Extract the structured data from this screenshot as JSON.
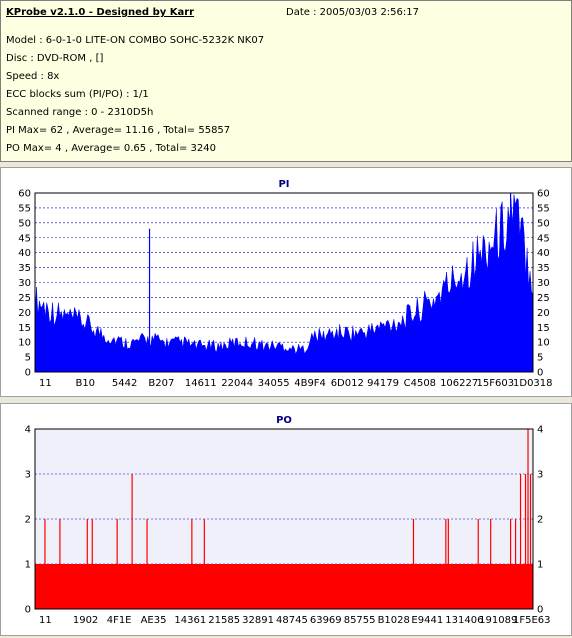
{
  "header": {
    "title": "KProbe v2.1.0 - Designed by Karr",
    "date": "Date : 2005/03/03 2:56:17",
    "lines": [
      "Model : 6-0-1-0 LITE-ON COMBO SOHC-5232K NK07",
      "Disc : DVD-ROM ,  []",
      "Speed : 8x",
      "ECC blocks sum (PI/PO) : 1/1",
      "Scanned range : 0 - 2310D5h",
      "PI Max= 62 , Average= 11.16 , Total= 55857",
      "PO Max= 4 , Average= 0.65 , Total= 3240"
    ]
  },
  "chart_data": [
    {
      "type": "area",
      "title": "PI",
      "color": "#0000ff",
      "ylim": [
        0,
        60
      ],
      "yticks": [
        0,
        5,
        10,
        15,
        20,
        25,
        30,
        35,
        40,
        45,
        50,
        55,
        60
      ],
      "xtick_labels": [
        "11",
        "B10",
        "5442",
        "B207",
        "14611",
        "22044",
        "34055",
        "4B9F4",
        "6D012",
        "94179",
        "C4508",
        "106227",
        "15F603",
        "1D0318"
      ],
      "grid": true,
      "series_description_points": {
        "x": [
          0,
          0.02,
          0.04,
          0.06,
          0.08,
          0.1,
          0.12,
          0.14,
          0.16,
          0.18,
          0.2,
          0.22,
          0.24,
          0.26,
          0.28,
          0.3,
          0.32,
          0.34,
          0.36,
          0.38,
          0.4,
          0.42,
          0.44,
          0.46,
          0.48,
          0.5,
          0.52,
          0.54,
          0.56,
          0.58,
          0.6,
          0.62,
          0.64,
          0.66,
          0.68,
          0.7,
          0.72,
          0.74,
          0.76,
          0.78,
          0.8,
          0.82,
          0.84,
          0.86,
          0.88,
          0.9,
          0.92,
          0.94,
          0.96,
          0.98,
          1.0
        ],
        "y": [
          22,
          20,
          18,
          17,
          16,
          15,
          13,
          11,
          10,
          9,
          9,
          10,
          10,
          9,
          9,
          9,
          8,
          8,
          8,
          8,
          9,
          9,
          9,
          8,
          8,
          8,
          7,
          7,
          11,
          11,
          12,
          12,
          12,
          12,
          13,
          14,
          15,
          16,
          18,
          20,
          22,
          25,
          28,
          31,
          34,
          37,
          40,
          44,
          50,
          40,
          28
        ]
      },
      "spikes": [
        {
          "x": 0.23,
          "y": 48
        },
        {
          "x": 0.955,
          "y": 62
        }
      ]
    },
    {
      "type": "bar",
      "title": "PO",
      "color": "#ff0000",
      "ylim": [
        0,
        4
      ],
      "yticks": [
        0,
        1,
        2,
        3,
        4
      ],
      "xtick_labels": [
        "11",
        "1902",
        "4F1E",
        "AE35",
        "14361",
        "21585",
        "32891",
        "48745",
        "63969",
        "85755",
        "B1028",
        "E9441",
        "131406",
        "191089",
        "1F5E63"
      ],
      "grid": true,
      "baseline": 1,
      "spikes": [
        {
          "x": 0.02,
          "y": 2
        },
        {
          "x": 0.05,
          "y": 2
        },
        {
          "x": 0.105,
          "y": 2
        },
        {
          "x": 0.115,
          "y": 2
        },
        {
          "x": 0.165,
          "y": 2
        },
        {
          "x": 0.195,
          "y": 3
        },
        {
          "x": 0.225,
          "y": 2
        },
        {
          "x": 0.315,
          "y": 2
        },
        {
          "x": 0.34,
          "y": 2
        },
        {
          "x": 0.76,
          "y": 2
        },
        {
          "x": 0.825,
          "y": 2
        },
        {
          "x": 0.83,
          "y": 2
        },
        {
          "x": 0.89,
          "y": 2
        },
        {
          "x": 0.915,
          "y": 2
        },
        {
          "x": 0.955,
          "y": 2
        },
        {
          "x": 0.965,
          "y": 2
        },
        {
          "x": 0.975,
          "y": 3
        },
        {
          "x": 0.985,
          "y": 3
        },
        {
          "x": 0.99,
          "y": 4
        },
        {
          "x": 0.995,
          "y": 3
        }
      ]
    }
  ]
}
